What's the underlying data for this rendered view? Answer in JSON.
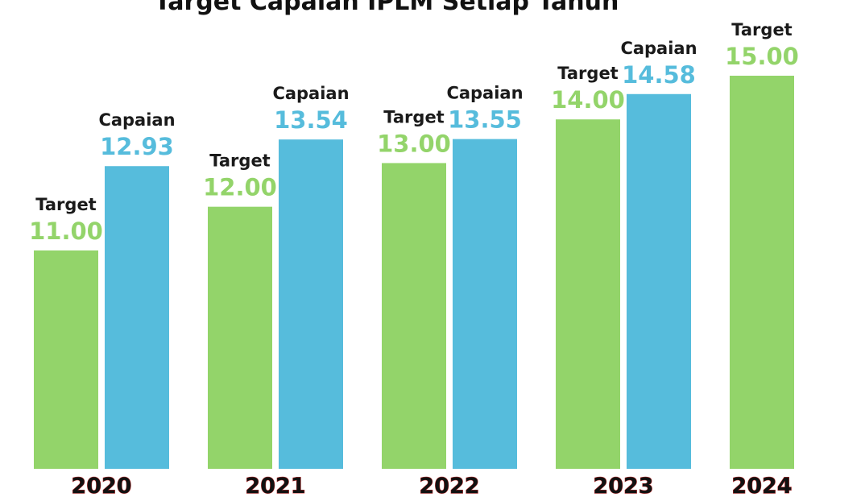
{
  "chart_data": {
    "type": "bar",
    "title": "Target Capaian IPLM Setiap Tahun",
    "categories": [
      "2020",
      "2021",
      "2022",
      "2023",
      "2024"
    ],
    "series": [
      {
        "name": "Target",
        "color": "#93d46a",
        "values": [
          11,
          12,
          13,
          14,
          15
        ],
        "value_labels": [
          "11.00",
          "12.00",
          "13.00",
          "14.00",
          "15.00"
        ]
      },
      {
        "name": "Capaian",
        "color": "#56bcdc",
        "values": [
          12.93,
          13.54,
          13.55,
          14.58,
          null
        ],
        "value_labels": [
          "12.93",
          "13.54",
          "13.55",
          "14.58",
          null
        ]
      }
    ]
  }
}
